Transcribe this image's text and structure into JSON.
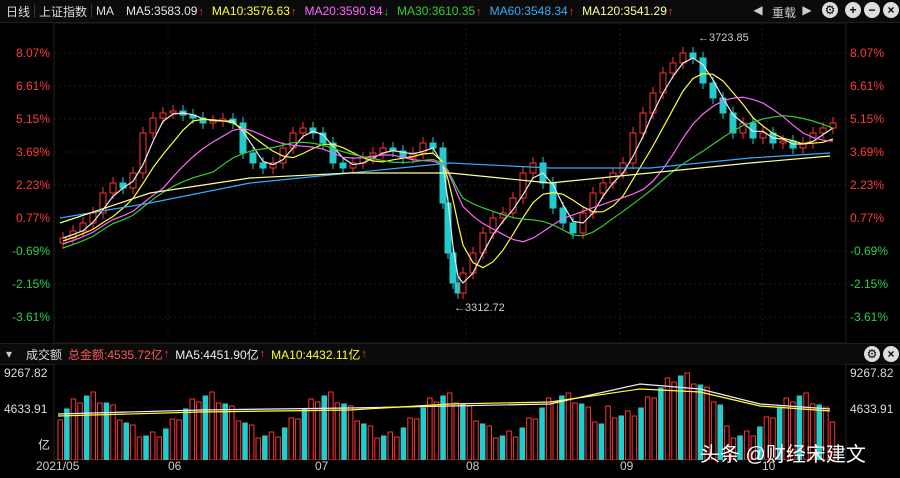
{
  "topbar": {
    "period": "日线",
    "index_name": "上证指数",
    "ma_label": "MA",
    "ma5": "MA5:3583.09",
    "ma10": "MA10:3576.63",
    "ma20": "MA20:3590.84",
    "ma30": "MA30:3610.35",
    "ma60": "MA60:3548.34",
    "ma120": "MA120:3541.29",
    "restore_label": "重载",
    "colors": {
      "ma5": "#e8e8e8",
      "ma10": "#ffff33",
      "ma20": "#ff66ff",
      "ma30": "#33cc33",
      "ma60": "#33aaff",
      "ma120": "#ffff99"
    }
  },
  "volume_bar": {
    "title": "成交额",
    "total": "总金额:4535.72亿",
    "ma5": "MA5:4451.90亿",
    "ma10": "MA10:4432.11亿"
  },
  "price_axis": {
    "left": [
      "8.07%",
      "6.61%",
      "5.15%",
      "3.69%",
      "2.23%",
      "0.77%",
      "-0.69%",
      "-2.15%",
      "-3.61%"
    ],
    "right": [
      "8.07%",
      "6.61%",
      "5.15%",
      "3.69%",
      "2.23%",
      "0.77%",
      "-0.69%",
      "-2.15%",
      "-3.61%"
    ]
  },
  "volume_axis": {
    "top": "9267.82",
    "mid": "4633.91",
    "unit": "亿"
  },
  "date_axis": [
    "2021/05",
    "06",
    "07",
    "08",
    "09",
    "10"
  ],
  "annotations": {
    "high": "←3723.85",
    "low": "←3312.72"
  },
  "watermark": "头条 @财经宋建文",
  "chart_data": {
    "type": "candlestick",
    "ylim_pct": [
      -3.61,
      8.07
    ],
    "y_ticks_pct": [
      8.07,
      6.61,
      5.15,
      3.69,
      2.23,
      0.77,
      -0.69,
      -2.15,
      -3.61
    ],
    "annotated_high": 3723.85,
    "annotated_low": 3312.72,
    "volume_ylim": [
      0,
      9267.82
    ]
  },
  "icons": [
    "arrow-left-icon",
    "arrow-right-icon",
    "plus-icon",
    "minus-icon",
    "close-icon",
    "settings-icon",
    "chevron-up-icon",
    "chevron-down-icon"
  ]
}
